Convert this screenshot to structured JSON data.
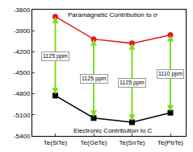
{
  "chart_data": {
    "type": "line",
    "categories": [
      "Te(SiTe)",
      "Te(GeTe)",
      "Te(SnTe)",
      "Te(PbTe)"
    ],
    "series": [
      {
        "name": "Paramagnetic Contribution to σ",
        "color": "#e8141c",
        "marker": "circle",
        "values": [
          -3700,
          -4020,
          -4080,
          -3960
        ]
      },
      {
        "name": "Electronic Contribution to C",
        "color": "#000000",
        "marker": "square",
        "values": [
          -4825,
          -5145,
          -5205,
          -5070
        ]
      }
    ],
    "annotations": [
      "1125 ppm",
      "1125 ppm",
      "1125 ppm",
      "1110 ppm"
    ],
    "ylim": [
      -5400,
      -3600
    ],
    "yticks": [
      -5400,
      -5100,
      -4800,
      -4500,
      -4200,
      -3900,
      -3600
    ],
    "grid": false
  }
}
